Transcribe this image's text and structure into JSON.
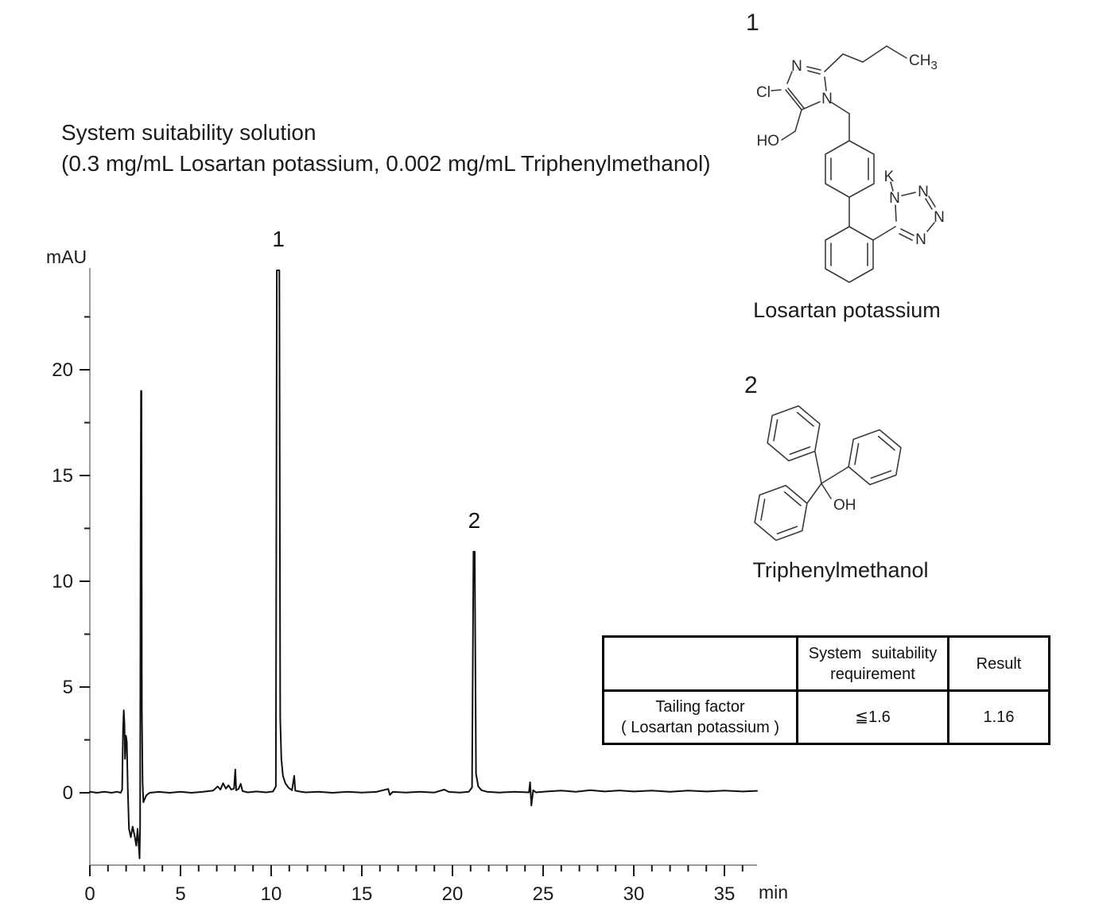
{
  "title": {
    "line1": "System suitability solution",
    "line2": "(0.3 mg/mL Losartan potassium, 0.002 mg/mL Triphenylmethanol)"
  },
  "chart_data": {
    "type": "line",
    "title": "",
    "xlabel": "min",
    "ylabel": "mAU",
    "grid": false,
    "legend": false,
    "x_axis": {
      "label": "min",
      "range": [
        0,
        36.8
      ],
      "major_ticks": [
        0,
        5,
        10,
        15,
        20,
        25,
        30,
        35
      ],
      "minor_tick_interval": 1
    },
    "y_axis": {
      "label": "mAU",
      "range": [
        -3.5,
        24.8
      ],
      "major_ticks": [
        0,
        5,
        10,
        15,
        20
      ],
      "minor_tick_interval": 2.5
    },
    "peaks": [
      {
        "label": "1",
        "compound": "Losartan potassium",
        "retention_min": 10.4,
        "height_mAU": 24.7
      },
      {
        "label": "2",
        "compound": "Triphenylmethanol",
        "retention_min": 21.2,
        "height_mAU": 11.4
      }
    ],
    "solvent_front": {
      "retention_min": 2.8,
      "height_mAU": 19.0,
      "min_dip_mAU": -3.1
    },
    "trace": [
      [
        0,
        0.05
      ],
      [
        0.4,
        0
      ],
      [
        0.8,
        0.05
      ],
      [
        1.2,
        0
      ],
      [
        1.5,
        0.05
      ],
      [
        1.7,
        0
      ],
      [
        1.78,
        0.15
      ],
      [
        1.83,
        2.9
      ],
      [
        1.87,
        3.9
      ],
      [
        1.91,
        3.3
      ],
      [
        1.94,
        1.6
      ],
      [
        1.99,
        2.7
      ],
      [
        2.04,
        2.4
      ],
      [
        2.09,
        0.2
      ],
      [
        2.16,
        -1.7
      ],
      [
        2.26,
        -2.1
      ],
      [
        2.36,
        -1.6
      ],
      [
        2.46,
        -2.0
      ],
      [
        2.56,
        -2.5
      ],
      [
        2.63,
        -1.7
      ],
      [
        2.69,
        -2.4
      ],
      [
        2.74,
        -3.1
      ],
      [
        2.77,
        -1.5
      ],
      [
        2.8,
        12
      ],
      [
        2.82,
        19
      ],
      [
        2.845,
        19
      ],
      [
        2.87,
        4
      ],
      [
        2.91,
        0.5
      ],
      [
        2.95,
        -0.45
      ],
      [
        3.02,
        -0.3
      ],
      [
        3.12,
        -0.12
      ],
      [
        3.3,
        0
      ],
      [
        3.8,
        0.04
      ],
      [
        4.4,
        0
      ],
      [
        5,
        0.05
      ],
      [
        5.6,
        0
      ],
      [
        6.2,
        0.04
      ],
      [
        6.8,
        0.1
      ],
      [
        7.05,
        0.3
      ],
      [
        7.2,
        0.15
      ],
      [
        7.35,
        0.45
      ],
      [
        7.5,
        0.2
      ],
      [
        7.65,
        0.35
      ],
      [
        7.8,
        0.15
      ],
      [
        7.95,
        0.2
      ],
      [
        8.02,
        1.1
      ],
      [
        8.07,
        0.12
      ],
      [
        8.2,
        0.18
      ],
      [
        8.32,
        0.42
      ],
      [
        8.42,
        0.08
      ],
      [
        8.7,
        0.02
      ],
      [
        9.2,
        0.06
      ],
      [
        9.7,
        0.02
      ],
      [
        10.1,
        0.06
      ],
      [
        10.26,
        0.3
      ],
      [
        10.31,
        24.7
      ],
      [
        10.45,
        24.7
      ],
      [
        10.5,
        3.5
      ],
      [
        10.56,
        1.6
      ],
      [
        10.65,
        0.8
      ],
      [
        10.78,
        0.45
      ],
      [
        10.95,
        0.25
      ],
      [
        11.15,
        0.12
      ],
      [
        11.27,
        0.8
      ],
      [
        11.33,
        0.1
      ],
      [
        11.55,
        0.06
      ],
      [
        11.9,
        0.02
      ],
      [
        12.6,
        0.05
      ],
      [
        13.4,
        0
      ],
      [
        14.2,
        0.05
      ],
      [
        15,
        0.01
      ],
      [
        15.8,
        0.04
      ],
      [
        16.45,
        0.18
      ],
      [
        16.55,
        -0.1
      ],
      [
        16.7,
        0.04
      ],
      [
        17.4,
        0.01
      ],
      [
        18.2,
        0.05
      ],
      [
        19,
        0.01
      ],
      [
        19.55,
        0.15
      ],
      [
        19.8,
        0.04
      ],
      [
        20.4,
        0.01
      ],
      [
        20.9,
        0.05
      ],
      [
        21.08,
        0.25
      ],
      [
        21.16,
        11.4
      ],
      [
        21.23,
        11.4
      ],
      [
        21.3,
        0.9
      ],
      [
        21.42,
        0.3
      ],
      [
        21.6,
        0.12
      ],
      [
        21.9,
        0.05
      ],
      [
        22.6,
        0.01
      ],
      [
        23.4,
        0.05
      ],
      [
        24.22,
        0.02
      ],
      [
        24.28,
        0.5
      ],
      [
        24.35,
        -0.6
      ],
      [
        24.45,
        0.12
      ],
      [
        24.6,
        0.02
      ],
      [
        25.2,
        0.06
      ],
      [
        26,
        0.1
      ],
      [
        26.8,
        0.05
      ],
      [
        27.6,
        0.12
      ],
      [
        28.4,
        0.06
      ],
      [
        29.2,
        0.11
      ],
      [
        30,
        0.06
      ],
      [
        31,
        0.1
      ],
      [
        32,
        0.05
      ],
      [
        33,
        0.1
      ],
      [
        34,
        0.06
      ],
      [
        35,
        0.1
      ],
      [
        36,
        0.06
      ],
      [
        36.8,
        0.09
      ]
    ]
  },
  "structures": {
    "losartan": {
      "number": "1",
      "caption": "Losartan potassium",
      "atoms": {
        "n": "N",
        "cl": "Cl",
        "ho": "HO",
        "ch": "CH",
        "ch_sub": "3",
        "k": "K"
      }
    },
    "trityl": {
      "number": "2",
      "caption": "Triphenylmethanol",
      "atoms": {
        "oh": "OH"
      }
    }
  },
  "table": {
    "header": {
      "col1": "",
      "col2_line1": "System suitability",
      "col2_line2": "requirement",
      "col3": "Result"
    },
    "rows": [
      {
        "name_line1": "Tailing factor",
        "name_line2": "( Losartan potassium )",
        "requirement": "≦1.6",
        "result": "1.16"
      }
    ]
  }
}
